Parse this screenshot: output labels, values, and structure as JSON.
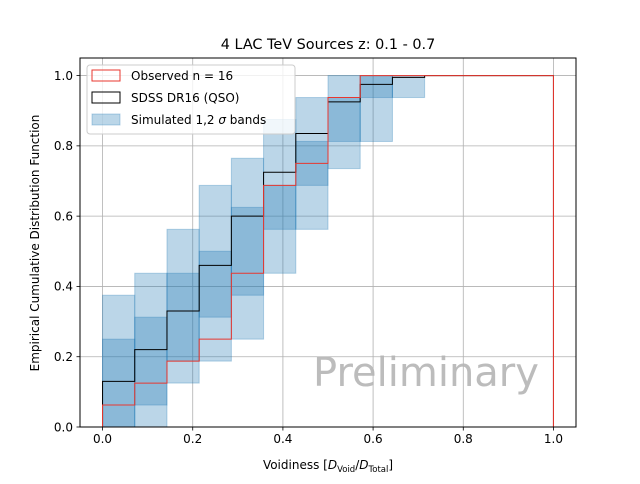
{
  "chart_data": {
    "type": "line",
    "title": "4 LAC TeV Sources z: 0.1 - 0.7",
    "xlabel": {
      "prefix": "Voidiness [",
      "num": "D",
      "num_sub": "Void",
      "sep": "/",
      "den": "D",
      "den_sub": "Total",
      "suffix": "]"
    },
    "ylabel": "Empirical Cumulative Distribution Function",
    "xlim": [
      -0.05,
      1.05
    ],
    "ylim": [
      0.0,
      1.05
    ],
    "grid": true,
    "xticks": [
      0.0,
      0.2,
      0.4,
      0.6,
      0.8,
      1.0
    ],
    "xtick_labels": [
      "0.0",
      "0.2",
      "0.4",
      "0.6",
      "0.8",
      "1.0"
    ],
    "yticks": [
      0.0,
      0.2,
      0.4,
      0.6,
      0.8,
      1.0
    ],
    "ytick_labels": [
      "0.0",
      "0.2",
      "0.4",
      "0.6",
      "0.8",
      "1.0"
    ],
    "watermark": "Preliminary",
    "legend_position": "top-left",
    "legend": [
      {
        "label": "Observed n = 16"
      },
      {
        "label": "SDSS DR16 (QSO)"
      },
      {
        "label_pre": "Simulated 1,2 ",
        "label_sym": "σ",
        "label_post": " bands"
      }
    ],
    "bin_edges": [
      0.0,
      0.0714,
      0.1429,
      0.2143,
      0.2857,
      0.3571,
      0.4286,
      0.5,
      0.5714,
      0.6429,
      0.7143,
      1.0
    ],
    "series": [
      {
        "name": "Observed n = 16",
        "color": "#e8372f",
        "values": [
          0.0625,
          0.125,
          0.1875,
          0.25,
          0.4375,
          0.6875,
          0.75,
          0.9375,
          1.0,
          1.0,
          1.0
        ]
      },
      {
        "name": "SDSS DR16 (QSO)",
        "color": "#000000",
        "values": [
          0.13,
          0.22,
          0.33,
          0.46,
          0.6,
          0.725,
          0.835,
          0.925,
          0.975,
          0.995,
          1.0
        ]
      }
    ],
    "bands": {
      "name": "Simulated 1,2 σ bands",
      "color": "#1f77b4",
      "sigma1": [
        [
          0.0,
          0.25
        ],
        [
          0.0625,
          0.3125
        ],
        [
          0.1875,
          0.4375
        ],
        [
          0.3125,
          0.5
        ],
        [
          0.375,
          0.625
        ],
        [
          0.5625,
          0.6875
        ],
        [
          0.6875,
          0.8125
        ],
        [
          0.8125,
          0.9375
        ],
        [
          0.9375,
          1.0
        ],
        [
          1.0,
          1.0
        ],
        [
          1.0,
          1.0
        ]
      ],
      "sigma2": [
        [
          0.0,
          0.375
        ],
        [
          0.0,
          0.4375
        ],
        [
          0.125,
          0.5625
        ],
        [
          0.1875,
          0.6875
        ],
        [
          0.25,
          0.7647
        ],
        [
          0.4375,
          0.875
        ],
        [
          0.5625,
          0.9375
        ],
        [
          0.7353,
          1.0
        ],
        [
          0.8125,
          1.0
        ],
        [
          0.9375,
          1.0
        ],
        [
          1.0,
          1.0
        ]
      ]
    }
  }
}
